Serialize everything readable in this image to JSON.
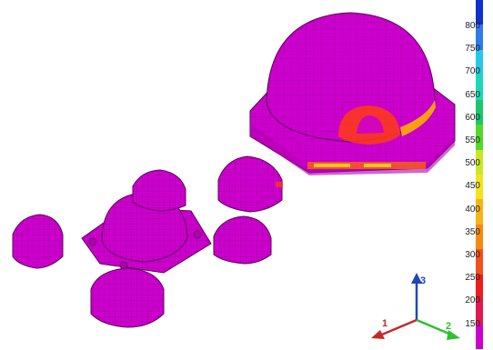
{
  "legend": {
    "ticks": [
      "800",
      "750",
      "700",
      "650",
      "600",
      "550",
      "500",
      "450",
      "400",
      "350",
      "300",
      "250",
      "200",
      "150"
    ],
    "colors": [
      "#1030d0",
      "#2e7bf0",
      "#25c8e8",
      "#1bd9b7",
      "#1cc66a",
      "#52d92a",
      "#c8e823",
      "#f2e51c",
      "#f7b515",
      "#f58a10",
      "#f2501a",
      "#ee1d1d",
      "#e21850",
      "#cc00cc"
    ]
  },
  "axes": {
    "x_label": "1",
    "y_label": "2",
    "z_label": "3",
    "x_color": "#c62828",
    "y_color": "#2ec02e",
    "z_color": "#1f47b8"
  },
  "model": {
    "base_color": "#cc00cc",
    "mesh_color": "#5a005a",
    "hot_colors": [
      "#ff3b10",
      "#ff8a00",
      "#ffd21a"
    ]
  }
}
